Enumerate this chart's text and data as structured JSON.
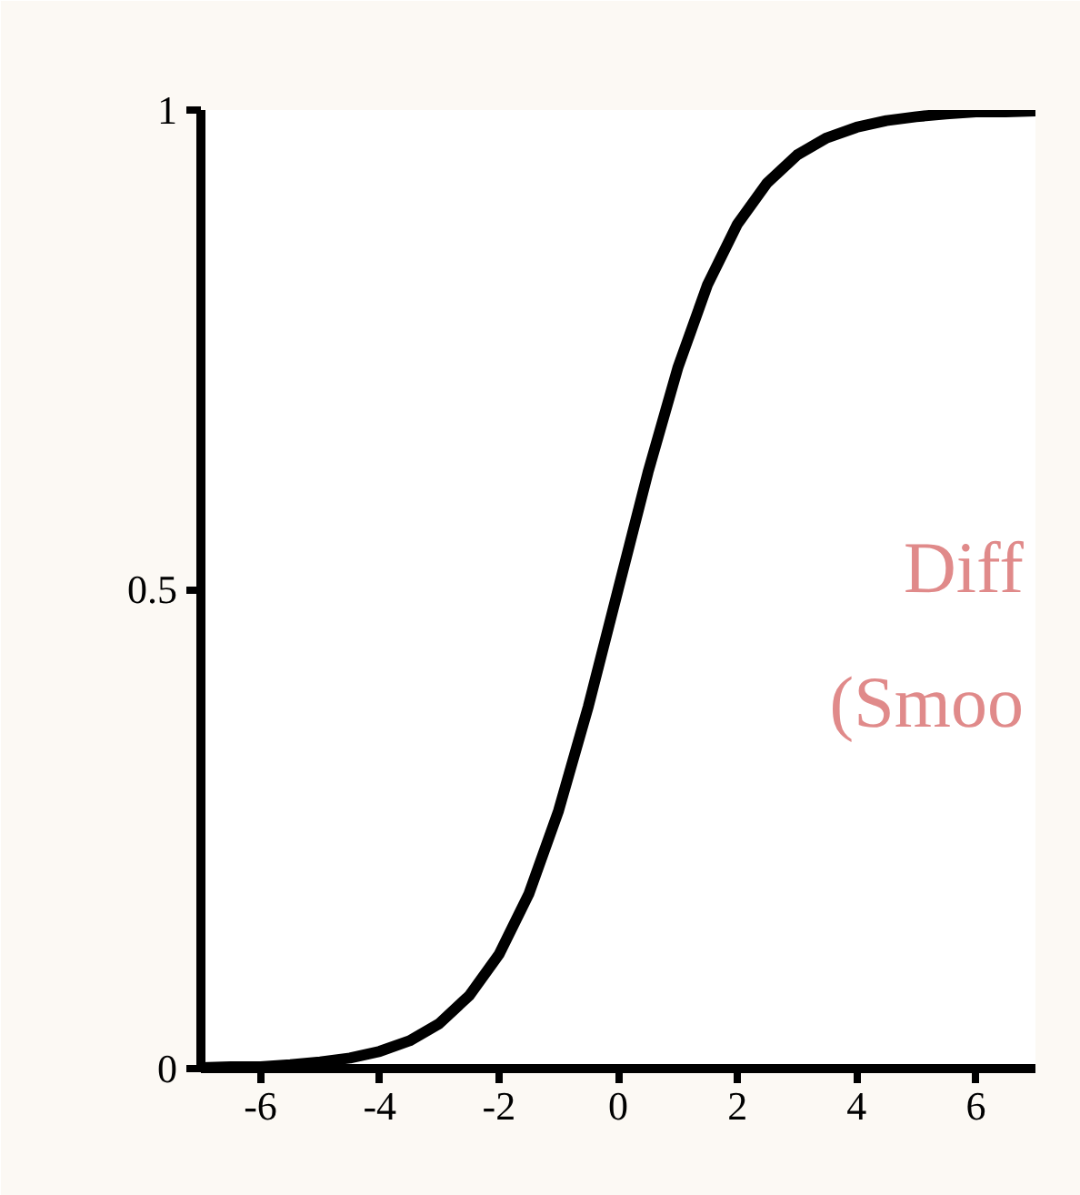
{
  "chart_data": {
    "type": "line",
    "x": [
      -7,
      -6.5,
      -6,
      -5.5,
      -5,
      -4.5,
      -4,
      -3.5,
      -3,
      -2.5,
      -2,
      -1.5,
      -1,
      -0.5,
      0,
      0.5,
      1,
      1.5,
      2,
      2.5,
      3,
      3.5,
      4,
      4.5,
      5,
      5.5,
      6,
      6.5,
      7
    ],
    "series": [
      {
        "color": "#000000",
        "values": [
          0.001,
          0.002,
          0.002,
          0.004,
          0.007,
          0.011,
          0.018,
          0.029,
          0.047,
          0.076,
          0.119,
          0.182,
          0.269,
          0.378,
          0.5,
          0.622,
          0.731,
          0.818,
          0.881,
          0.924,
          0.953,
          0.971,
          0.982,
          0.989,
          0.993,
          0.996,
          0.998,
          0.998,
          0.999
        ]
      }
    ],
    "xlim": [
      -7,
      7
    ],
    "ylim": [
      0,
      1
    ],
    "xticks": [
      -6,
      -4,
      -2,
      0,
      2,
      4,
      6
    ],
    "yticks": [
      0,
      0.5,
      1
    ],
    "marker": "none",
    "line_style": "solid",
    "annotations": [
      "Diff",
      "(Smoo"
    ]
  }
}
